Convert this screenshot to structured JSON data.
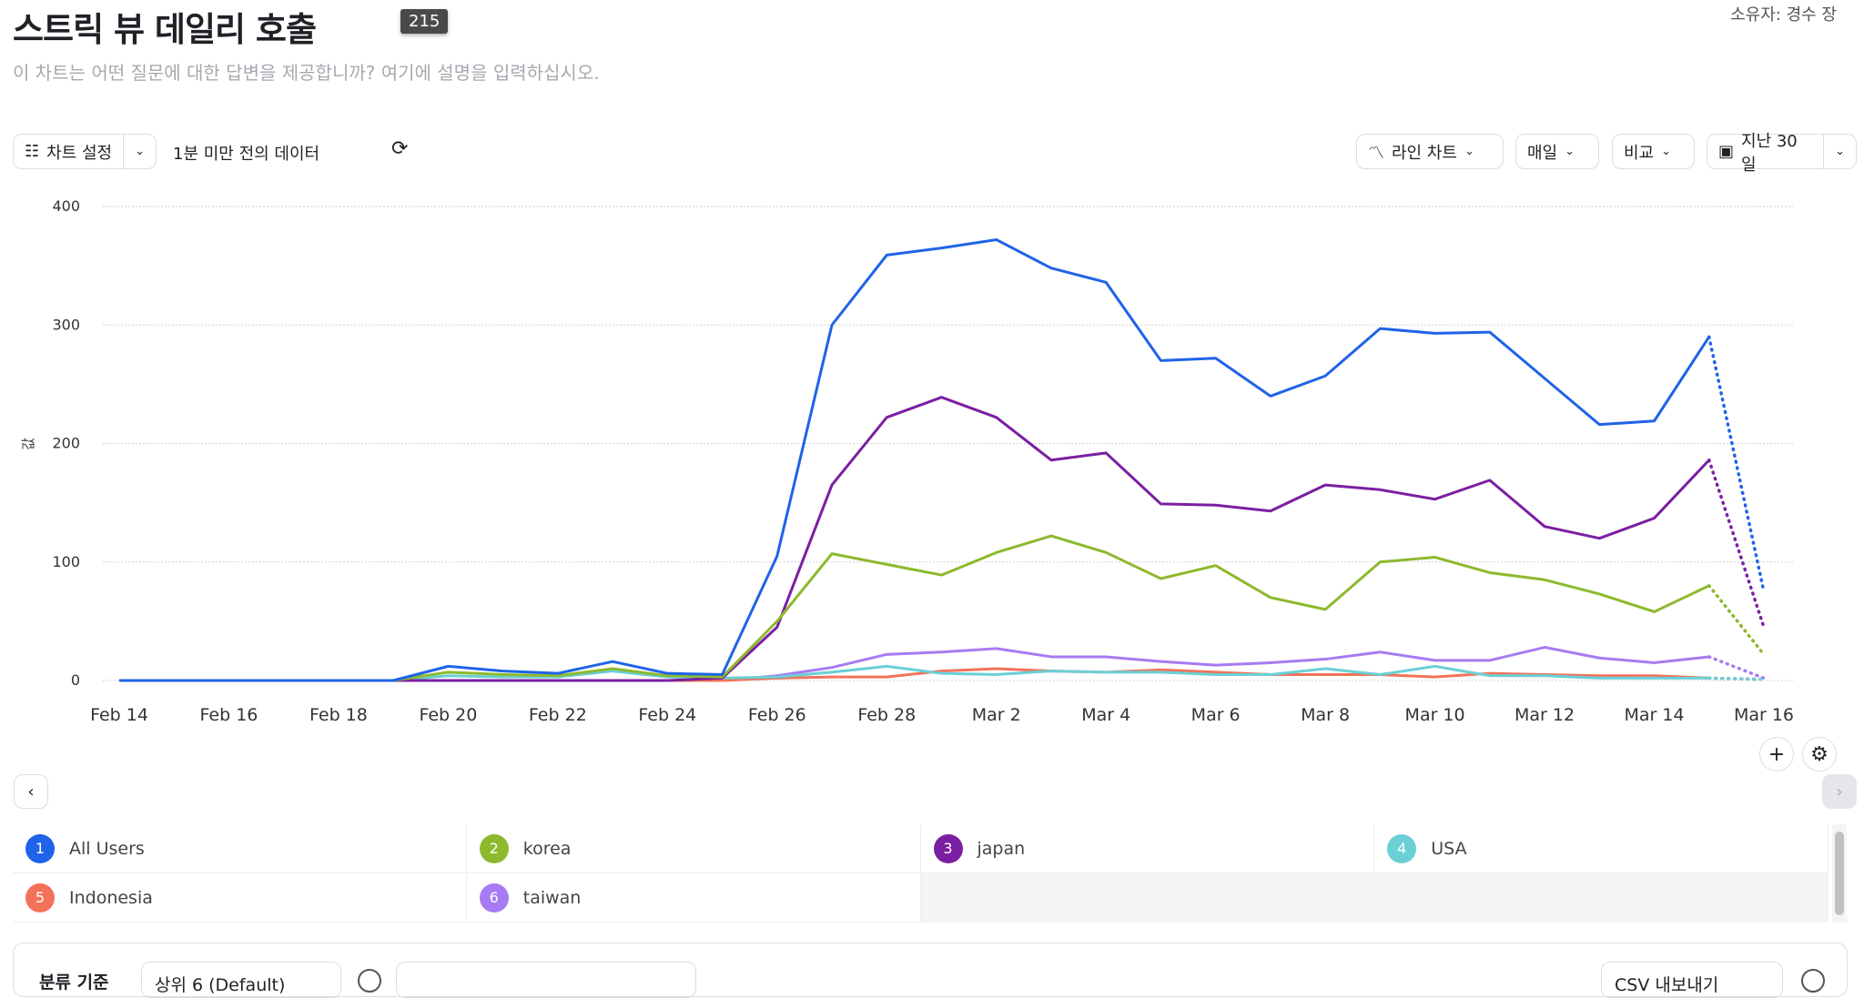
{
  "header": {
    "title": "스트릭 뷰 데일리 호출",
    "owner": "소유자: 경수 장",
    "description": "이 차트는 어떤 질문에 대한 답변을 제공합니까? 여기에 설명을 입력하십시오.",
    "tooltip": "215"
  },
  "toolbar": {
    "chart_settings": "차트 설정",
    "data_age": "1분 미만 전의 데이터",
    "chart_type": "라인 차트",
    "interval": "매일",
    "compare": "비교",
    "date_range": "지난 30일"
  },
  "chart_data": {
    "type": "line",
    "ylabel": "값",
    "ylim": [
      0,
      400
    ],
    "yticks": [
      0,
      100,
      200,
      300,
      400
    ],
    "grid": true,
    "xtick_labels": [
      "Feb 14",
      "Feb 16",
      "Feb 18",
      "Feb 20",
      "Feb 22",
      "Feb 24",
      "Feb 26",
      "Feb 28",
      "Mar 2",
      "Mar 4",
      "Mar 6",
      "Mar 8",
      "Mar 10",
      "Mar 12",
      "Mar 14",
      "Mar 16"
    ],
    "x": [
      "Feb 14",
      "Feb 15",
      "Feb 16",
      "Feb 17",
      "Feb 18",
      "Feb 19",
      "Feb 20",
      "Feb 21",
      "Feb 22",
      "Feb 23",
      "Feb 24",
      "Feb 25",
      "Feb 26",
      "Feb 27",
      "Feb 28",
      "Mar 1",
      "Mar 2",
      "Mar 3",
      "Mar 4",
      "Mar 5",
      "Mar 6",
      "Mar 7",
      "Mar 8",
      "Mar 9",
      "Mar 10",
      "Mar 11",
      "Mar 12",
      "Mar 13",
      "Mar 14",
      "Mar 15",
      "Mar 16"
    ],
    "incomplete_last_point": true,
    "series": [
      {
        "name": "All Users",
        "color": "#1f63e8",
        "values": [
          0,
          0,
          0,
          0,
          0,
          0,
          12,
          8,
          6,
          16,
          6,
          5,
          105,
          300,
          359,
          365,
          372,
          348,
          336,
          270,
          272,
          240,
          257,
          297,
          293,
          294,
          255,
          216,
          219,
          290,
          75
        ]
      },
      {
        "name": "korea",
        "color": "#8db92e",
        "values": [
          0,
          0,
          0,
          0,
          0,
          0,
          7,
          5,
          4,
          10,
          4,
          3,
          50,
          107,
          98,
          89,
          108,
          122,
          108,
          86,
          97,
          70,
          60,
          100,
          104,
          91,
          85,
          73,
          58,
          80,
          22
        ]
      },
      {
        "name": "japan",
        "color": "#7b1fa2",
        "values": [
          0,
          0,
          0,
          0,
          0,
          0,
          0,
          0,
          0,
          0,
          0,
          2,
          45,
          165,
          222,
          239,
          222,
          186,
          192,
          149,
          148,
          143,
          165,
          161,
          153,
          169,
          130,
          120,
          137,
          186,
          45
        ]
      },
      {
        "name": "USA",
        "color": "#6ad0d6",
        "values": [
          0,
          0,
          0,
          0,
          0,
          0,
          4,
          3,
          3,
          8,
          3,
          2,
          3,
          7,
          12,
          6,
          5,
          8,
          7,
          7,
          5,
          5,
          10,
          5,
          12,
          4,
          4,
          2,
          2,
          2,
          1
        ]
      },
      {
        "name": "Indonesia",
        "color": "#f2735a",
        "values": [
          0,
          0,
          0,
          0,
          0,
          0,
          0,
          0,
          0,
          0,
          0,
          0,
          2,
          3,
          3,
          8,
          10,
          8,
          7,
          9,
          7,
          5,
          5,
          5,
          3,
          6,
          5,
          4,
          4,
          2,
          1
        ]
      },
      {
        "name": "taiwan",
        "color": "#a77bf3",
        "values": [
          0,
          0,
          0,
          0,
          0,
          0,
          0,
          0,
          0,
          0,
          0,
          0,
          4,
          11,
          22,
          24,
          27,
          20,
          20,
          16,
          13,
          15,
          18,
          24,
          17,
          17,
          28,
          19,
          15,
          20,
          2
        ]
      }
    ]
  },
  "legend": [
    {
      "num": "1",
      "label": "All Users",
      "color": "#1f63e8"
    },
    {
      "num": "2",
      "label": "korea",
      "color": "#8db92e"
    },
    {
      "num": "3",
      "label": "japan",
      "color": "#7b1fa2"
    },
    {
      "num": "4",
      "label": "USA",
      "color": "#6ad0d6"
    },
    {
      "num": "5",
      "label": "Indonesia",
      "color": "#f2735a"
    },
    {
      "num": "6",
      "label": "taiwan",
      "color": "#a77bf3"
    }
  ],
  "bottom": {
    "group_by": "분류 기준",
    "group_value": "상위 6 (Default)",
    "export": "CSV 내보내기"
  }
}
